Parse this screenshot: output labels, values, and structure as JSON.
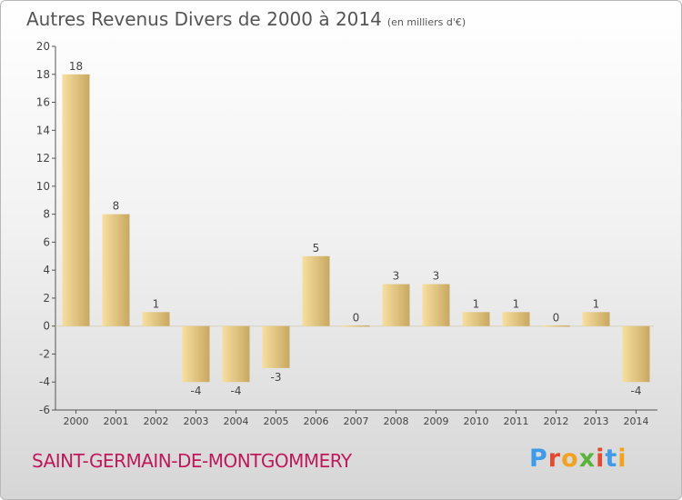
{
  "header": {
    "title": "Autres Revenus Divers de 2000 à 2014",
    "unit": "(en milliers d'€)"
  },
  "footer": {
    "commune": "SAINT-GERMAIN-DE-MONTGOMMERY",
    "logo": "Proxiti",
    "logo_colors": [
      "#3d9be9",
      "#e64a2e",
      "#f2a21d",
      "#59b33f",
      "#e64a2e",
      "#3d9be9",
      "#f2a21d"
    ]
  },
  "colors": {
    "bar_light": "#f7dfa0",
    "bar_dark": "#c8a860",
    "axis": "#555555",
    "text": "#444444"
  },
  "chart_data": {
    "type": "bar",
    "title": "Autres Revenus Divers de 2000 à 2014",
    "subtitle": "(en milliers d'€)",
    "xlabel": "",
    "ylabel": "",
    "categories": [
      "2000",
      "2001",
      "2002",
      "2003",
      "2004",
      "2005",
      "2006",
      "2007",
      "2008",
      "2009",
      "2010",
      "2011",
      "2012",
      "2013",
      "2014"
    ],
    "values": [
      18,
      8,
      1,
      -4,
      -4,
      -3,
      5,
      0,
      3,
      3,
      1,
      1,
      0,
      1,
      -4
    ],
    "data_labels": [
      "18",
      "8",
      "1",
      "-4",
      "-4",
      "-3",
      "5",
      "0",
      "3",
      "3",
      "1",
      "1",
      "0",
      "1",
      "-4"
    ],
    "ylim": [
      -6,
      20
    ],
    "yticks": [
      -6,
      -4,
      -2,
      0,
      2,
      4,
      6,
      8,
      10,
      12,
      14,
      16,
      18,
      20
    ],
    "grid": false,
    "legend": "none"
  }
}
